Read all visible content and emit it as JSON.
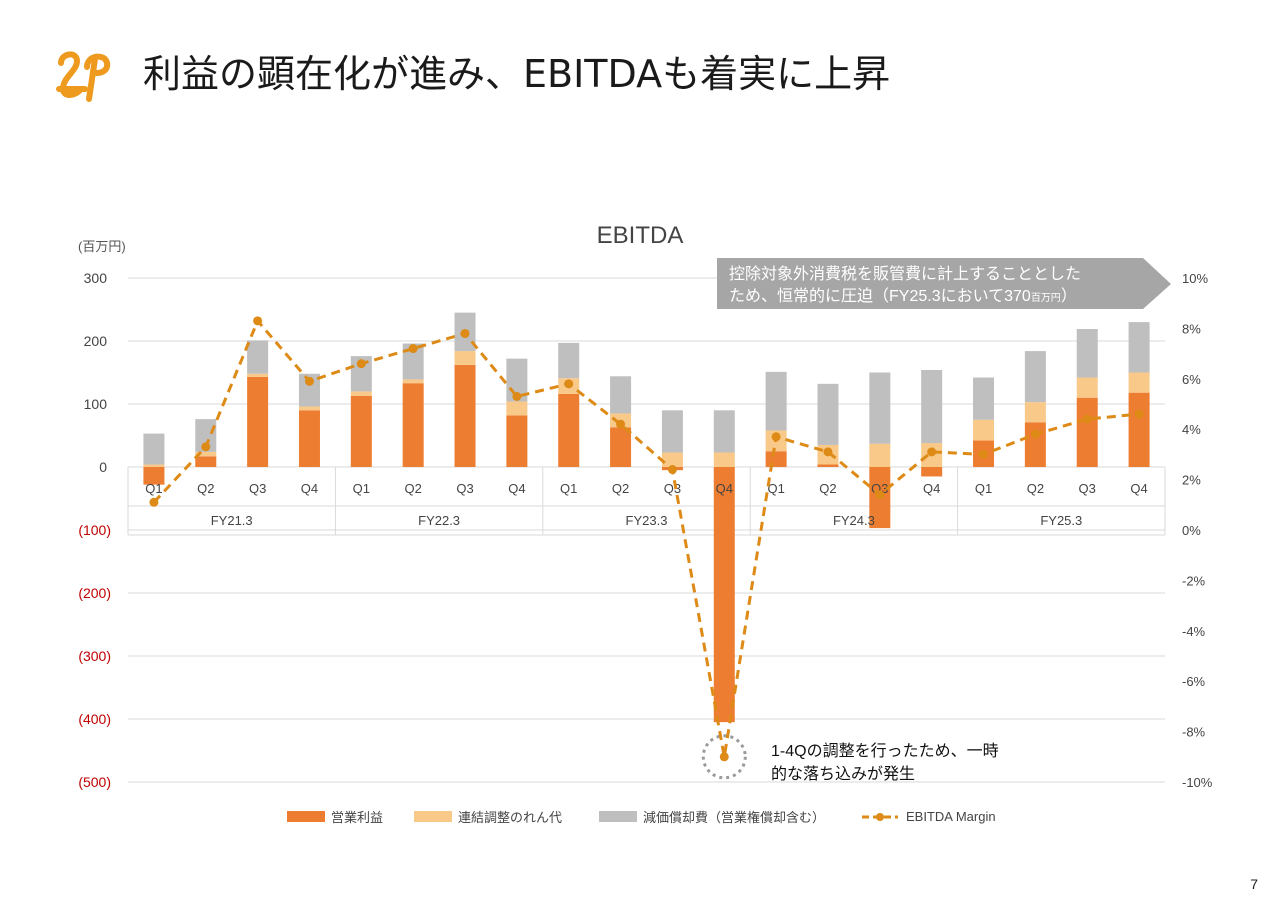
{
  "page": {
    "title": "利益の顕在化が進み、EBITDAも着実に上昇",
    "page_number": "7",
    "brand_color": "#EE9A1E"
  },
  "chart_data": {
    "type": "bar",
    "stacked": true,
    "title": "EBITDA",
    "y_unit_label": "(百万円)",
    "ylim": [
      -500,
      300
    ],
    "y_ticks": [
      300,
      200,
      100,
      0,
      -100,
      -200,
      -300,
      -400,
      -500
    ],
    "y_tick_labels": [
      "300",
      "200",
      "100",
      "0",
      "(100)",
      "(200)",
      "(300)",
      "(400)",
      "(500)"
    ],
    "y2lim": [
      -10,
      10
    ],
    "y2_ticks": [
      10,
      8,
      6,
      4,
      2,
      0,
      -2,
      -4,
      -6,
      -8,
      -10
    ],
    "y2_tick_labels": [
      "10%",
      "8%",
      "6%",
      "4%",
      "2%",
      "0%",
      "-2%",
      "-4%",
      "-6%",
      "-8%",
      "-10%"
    ],
    "categories": [
      "Q1",
      "Q2",
      "Q3",
      "Q4",
      "Q1",
      "Q2",
      "Q3",
      "Q4",
      "Q1",
      "Q2",
      "Q3",
      "Q4",
      "Q1",
      "Q2",
      "Q3",
      "Q4",
      "Q1",
      "Q2",
      "Q3",
      "Q4"
    ],
    "groups": [
      "FY21.3",
      "FY22.3",
      "FY23.3",
      "FY24.3",
      "FY25.3"
    ],
    "series": [
      {
        "name": "営業利益",
        "color": "#ED7D31",
        "values": [
          -28,
          17,
          143,
          90,
          113,
          133,
          162,
          82,
          116,
          63,
          -5,
          -405,
          25,
          4,
          -97,
          -15,
          42,
          71,
          110,
          118
        ]
      },
      {
        "name": "連結調整のれん代",
        "color": "#F9C98A",
        "values": [
          4,
          7,
          5,
          6,
          7,
          6,
          22,
          22,
          25,
          22,
          23,
          23,
          33,
          31,
          37,
          38,
          33,
          32,
          32,
          32
        ]
      },
      {
        "name": "減価償却費（営業権償却含む）",
        "color": "#BFBFBF",
        "values": [
          49,
          52,
          53,
          52,
          56,
          57,
          61,
          68,
          56,
          59,
          67,
          67,
          93,
          97,
          113,
          116,
          67,
          81,
          77,
          80
        ]
      }
    ],
    "line": {
      "name": "EBITDA Margin",
      "color": "#DD8A16",
      "values": [
        1.1,
        3.3,
        8.3,
        5.9,
        6.6,
        7.2,
        7.8,
        5.3,
        5.8,
        4.2,
        2.4,
        -9.0,
        3.7,
        3.1,
        1.4,
        3.1,
        3.0,
        3.8,
        4.4,
        4.6
      ]
    },
    "annotations": {
      "callout": "控除対象外消費税を販管費に計上することとしたため、恒常的に圧迫（FY25.3において370百万円）",
      "callout_line1": "控除対象外消費税を販管費に計上することとした",
      "callout_line2_main": "ため、恒常的に圧迫（FY25.3において370",
      "callout_line2_small": "百万円",
      "callout_line2_end": "）",
      "note_line1": "1-4Qの調整を行ったため、一時",
      "note_line2": "的な落ち込みが発生"
    },
    "legend_position": "bottom",
    "grid": true
  }
}
